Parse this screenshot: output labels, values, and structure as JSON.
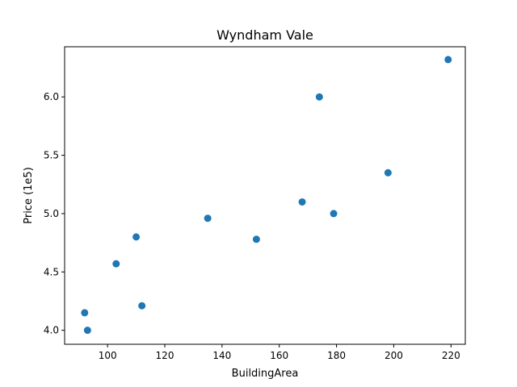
{
  "chart_data": {
    "type": "scatter",
    "title": "Wyndham Vale",
    "xlabel": "BuildingArea",
    "ylabel": "Price (1e5)",
    "xlim": [
      85,
      225
    ],
    "ylim": [
      3.88,
      6.43
    ],
    "xticks": [
      100,
      120,
      140,
      160,
      180,
      200,
      220
    ],
    "yticks": [
      4.0,
      4.5,
      5.0,
      5.5,
      6.0
    ],
    "ytick_labels": [
      "4.0",
      "4.5",
      "5.0",
      "5.5",
      "6.0"
    ],
    "grid": false,
    "marker_color": "#1f77b4",
    "points": [
      {
        "x": 92,
        "y": 4.15
      },
      {
        "x": 93,
        "y": 4.0
      },
      {
        "x": 103,
        "y": 4.57
      },
      {
        "x": 110,
        "y": 4.8
      },
      {
        "x": 112,
        "y": 4.21
      },
      {
        "x": 135,
        "y": 4.96
      },
      {
        "x": 152,
        "y": 4.78
      },
      {
        "x": 168,
        "y": 5.1
      },
      {
        "x": 174,
        "y": 6.0
      },
      {
        "x": 179,
        "y": 5.0
      },
      {
        "x": 198,
        "y": 5.35
      },
      {
        "x": 219,
        "y": 6.32
      }
    ]
  }
}
